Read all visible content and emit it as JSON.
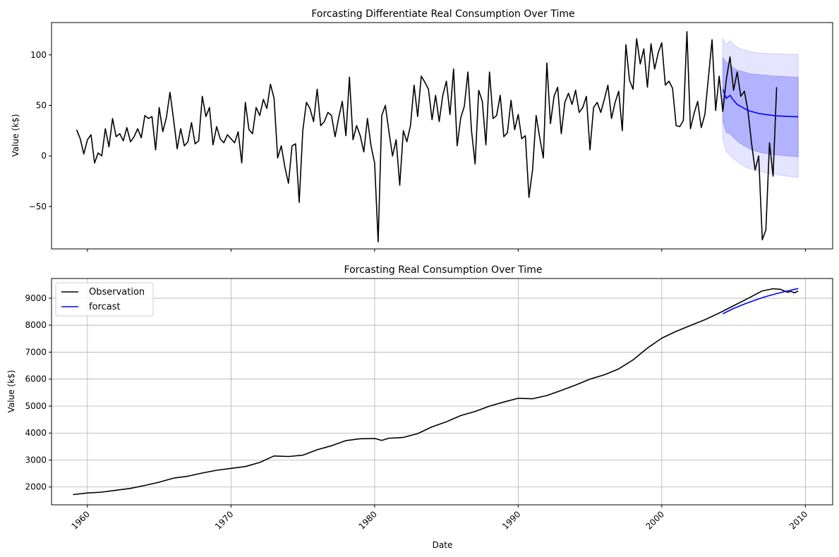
{
  "chart_data": [
    {
      "type": "line",
      "title": "Forcasting Differentiate Real Consumption Over Time",
      "xlabel": "",
      "ylabel": "Value (k$)",
      "xlim": [
        1957.5,
        2011.9
      ],
      "ylim": [
        -92,
        132
      ],
      "yticks": [
        -50,
        0,
        50,
        100
      ],
      "xticks": [
        1960,
        1970,
        1980,
        1990,
        2000,
        2010
      ],
      "show_xtick_labels": false,
      "grid": false,
      "colors": {
        "observation": "#000000",
        "forecast": "#0000ff",
        "band": "#0000ff"
      },
      "series": [
        {
          "role": "observation",
          "x_start": 1959.25,
          "x_step": 0.25,
          "values": [
            26,
            17,
            2,
            16,
            21,
            -7,
            3,
            0,
            27,
            9,
            37,
            19,
            22,
            15,
            28,
            14,
            19,
            27,
            18,
            40,
            37,
            39,
            6,
            48,
            24,
            38,
            63,
            36,
            7,
            27,
            10,
            14,
            33,
            12,
            15,
            59,
            39,
            48,
            11,
            29,
            17,
            13,
            21,
            17,
            13,
            24,
            -7,
            53,
            26,
            22,
            48,
            40,
            56,
            47,
            71,
            57,
            -2,
            10,
            -11,
            -27,
            10,
            12,
            -46,
            25,
            53,
            47,
            34,
            66,
            30,
            34,
            43,
            40,
            19,
            38,
            54,
            20,
            78,
            16,
            30,
            20,
            4,
            37,
            10,
            -7,
            -85,
            40,
            50,
            24,
            0,
            16,
            -29,
            25,
            14,
            30,
            70,
            39,
            79,
            73,
            66,
            36,
            60,
            34,
            60,
            74,
            41,
            86,
            10,
            38,
            49,
            83,
            25,
            -8,
            65,
            54,
            11,
            83,
            37,
            40,
            60,
            19,
            23,
            55,
            26,
            41,
            17,
            20,
            -41,
            -14,
            40,
            18,
            -2,
            92,
            32,
            59,
            68,
            22,
            53,
            62,
            51,
            65,
            43,
            48,
            59,
            6,
            48,
            53,
            43,
            56,
            70,
            37,
            53,
            64,
            25,
            110,
            75,
            66,
            116,
            91,
            106,
            68,
            111,
            86,
            102,
            112,
            70,
            74,
            67,
            30,
            29,
            35,
            123,
            27,
            42,
            54,
            28,
            41,
            78,
            115,
            45,
            79,
            44,
            76,
            98,
            65,
            83,
            59,
            64,
            45,
            13,
            -14,
            0,
            -83,
            -73,
            13,
            -20,
            68
          ]
        },
        {
          "role": "forecast",
          "x": [
            2004.25,
            2004.5,
            2004.75,
            2005.0,
            2005.25,
            2005.5,
            2005.75,
            2006.0,
            2006.25,
            2006.5,
            2006.75,
            2007.0,
            2007.25,
            2007.5,
            2007.75,
            2008.0,
            2008.25,
            2008.5,
            2008.75,
            2009.0,
            2009.25,
            2009.5
          ],
          "values": [
            66,
            57,
            60,
            55,
            51,
            49,
            47,
            45,
            44,
            43,
            42,
            41.5,
            41,
            40.5,
            40,
            39.7,
            39.5,
            39.3,
            39.1,
            39,
            38.9,
            38.8
          ],
          "ci_inner_upper": [
            97,
            93,
            90,
            87,
            85,
            84,
            83,
            82,
            81,
            81,
            80.5,
            80,
            80,
            79.5,
            79.2,
            79,
            78.8,
            78.6,
            78.5,
            78.3,
            78.2,
            78.1
          ],
          "ci_inner_lower": [
            34,
            23,
            22,
            18,
            15,
            12,
            10,
            8,
            6,
            5,
            4,
            3,
            2.5,
            2,
            1.5,
            1,
            0.6,
            0.3,
            0,
            -0.3,
            -0.6,
            -0.9
          ],
          "ci_outer_upper": [
            116,
            110,
            114,
            110,
            108,
            106,
            105,
            104,
            103,
            102.5,
            102,
            101.7,
            101.5,
            101.3,
            101.1,
            101,
            100.9,
            100.8,
            100.7,
            100.6,
            100.5,
            100.5
          ],
          "ci_outer_lower": [
            16,
            4,
            1,
            -3,
            -5,
            -8,
            -10,
            -12,
            -13,
            -14,
            -15,
            -16,
            -17,
            -17.5,
            -18,
            -18.5,
            -19,
            -19.5,
            -20,
            -20.5,
            -21,
            -21.3
          ]
        }
      ]
    },
    {
      "type": "line",
      "title": "Forcasting Real Consumption Over Time",
      "xlabel": "Date",
      "ylabel": "Value (k$)",
      "xlim": [
        1957.5,
        2011.9
      ],
      "ylim": [
        1340,
        9730
      ],
      "yticks": [
        2000,
        3000,
        4000,
        5000,
        6000,
        7000,
        8000,
        9000
      ],
      "xticks": [
        1960,
        1970,
        1980,
        1990,
        2000,
        2010
      ],
      "xtick_labels": [
        "1960",
        "1970",
        "1980",
        "1990",
        "2000",
        "2010"
      ],
      "grid": true,
      "legend": {
        "position": "upper-left",
        "entries": [
          "Observation",
          "forcast"
        ]
      },
      "series": [
        {
          "name": "Observation",
          "color": "#000000",
          "x": [
            1959.0,
            1960.0,
            1961.0,
            1962.0,
            1963.0,
            1964.0,
            1965.0,
            1966.0,
            1967.0,
            1968.0,
            1969.0,
            1970.0,
            1971.0,
            1972.0,
            1973.0,
            1974.0,
            1975.0,
            1976.0,
            1977.0,
            1978.0,
            1979.0,
            1980.0,
            1980.5,
            1981.0,
            1981.5,
            1982.0,
            1983.0,
            1984.0,
            1985.0,
            1986.0,
            1987.0,
            1988.0,
            1989.0,
            1990.0,
            1991.0,
            1992.0,
            1993.0,
            1994.0,
            1995.0,
            1996.0,
            1997.0,
            1998.0,
            1999.0,
            2000.0,
            2001.0,
            2002.0,
            2003.0,
            2004.0,
            2005.0,
            2006.0,
            2007.0,
            2007.75,
            2008.25,
            2008.75,
            2009.0,
            2009.25,
            2009.5
          ],
          "values": [
            1720,
            1780,
            1810,
            1880,
            1950,
            2060,
            2180,
            2330,
            2400,
            2520,
            2620,
            2690,
            2760,
            2910,
            3150,
            3130,
            3180,
            3380,
            3530,
            3720,
            3790,
            3800,
            3730,
            3810,
            3820,
            3840,
            3980,
            4230,
            4420,
            4650,
            4800,
            5000,
            5150,
            5290,
            5270,
            5390,
            5580,
            5780,
            6000,
            6160,
            6380,
            6710,
            7150,
            7520,
            7770,
            7990,
            8200,
            8450,
            8720,
            8990,
            9270,
            9350,
            9330,
            9220,
            9250,
            9200,
            9270
          ]
        },
        {
          "name": "forcast",
          "color": "#0000ff",
          "x": [
            2004.25,
            2005.0,
            2005.75,
            2006.5,
            2007.25,
            2008.0,
            2008.75,
            2009.5
          ],
          "values": [
            8420,
            8620,
            8780,
            8930,
            9060,
            9170,
            9270,
            9360
          ]
        }
      ]
    }
  ]
}
